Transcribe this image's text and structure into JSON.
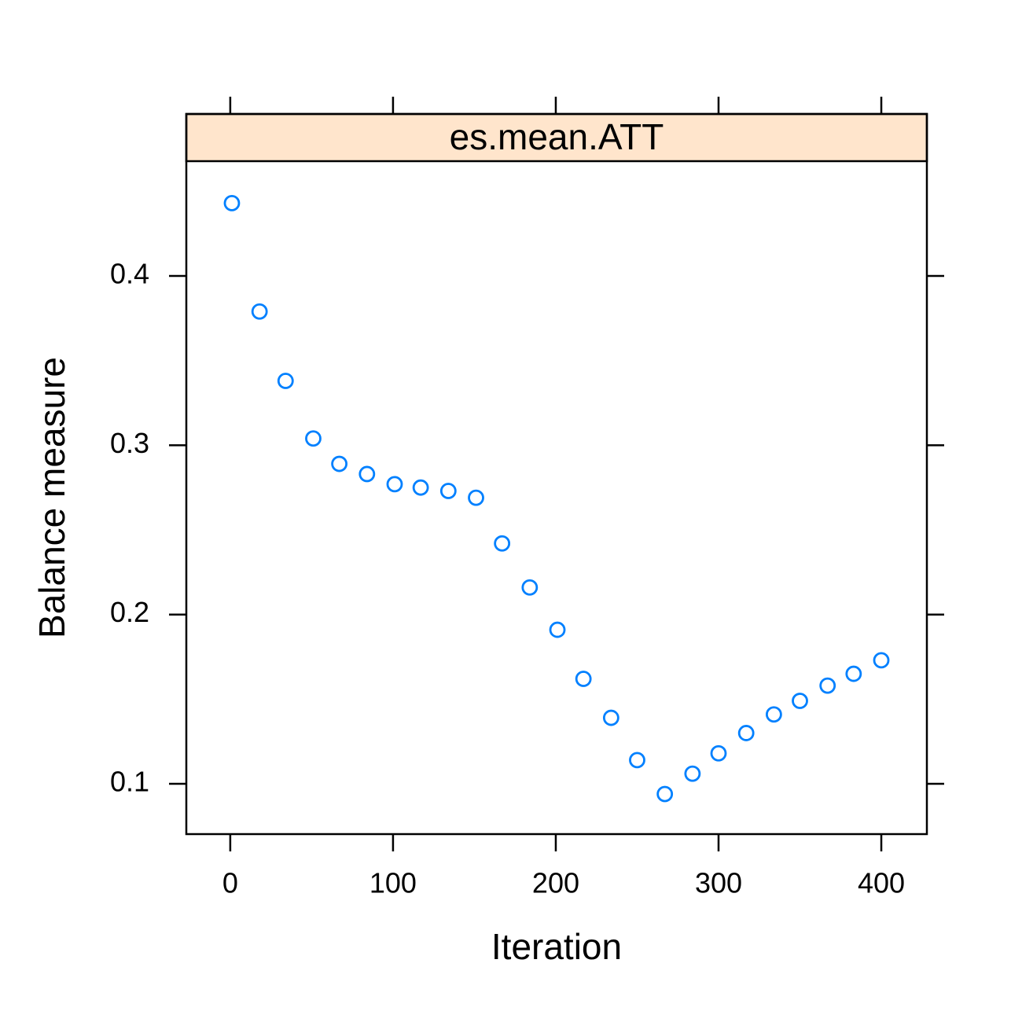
{
  "chart_data": {
    "type": "scatter",
    "strip": "es.mean.ATT",
    "x_label": "Iteration",
    "y_label": "Balance measure",
    "x": [
      1,
      18,
      34,
      51,
      67,
      84,
      101,
      117,
      134,
      151,
      167,
      184,
      201,
      217,
      234,
      250,
      267,
      284,
      300,
      317,
      334,
      350,
      367,
      383,
      400
    ],
    "values": [
      0.443,
      0.379,
      0.338,
      0.304,
      0.289,
      0.283,
      0.277,
      0.275,
      0.273,
      0.269,
      0.242,
      0.216,
      0.191,
      0.162,
      0.139,
      0.114,
      0.094,
      0.106,
      0.118,
      0.13,
      0.141,
      0.149,
      0.158,
      0.165,
      0.173
    ],
    "color": "#0080ff",
    "strip_color": "#ffe5cc",
    "xlim": [
      -27,
      428
    ],
    "ylim": [
      0.0703,
      0.4678
    ],
    "xticks": [
      0,
      100,
      200,
      300,
      400
    ],
    "yticks": [
      0.1,
      0.2,
      0.3,
      0.4
    ]
  }
}
